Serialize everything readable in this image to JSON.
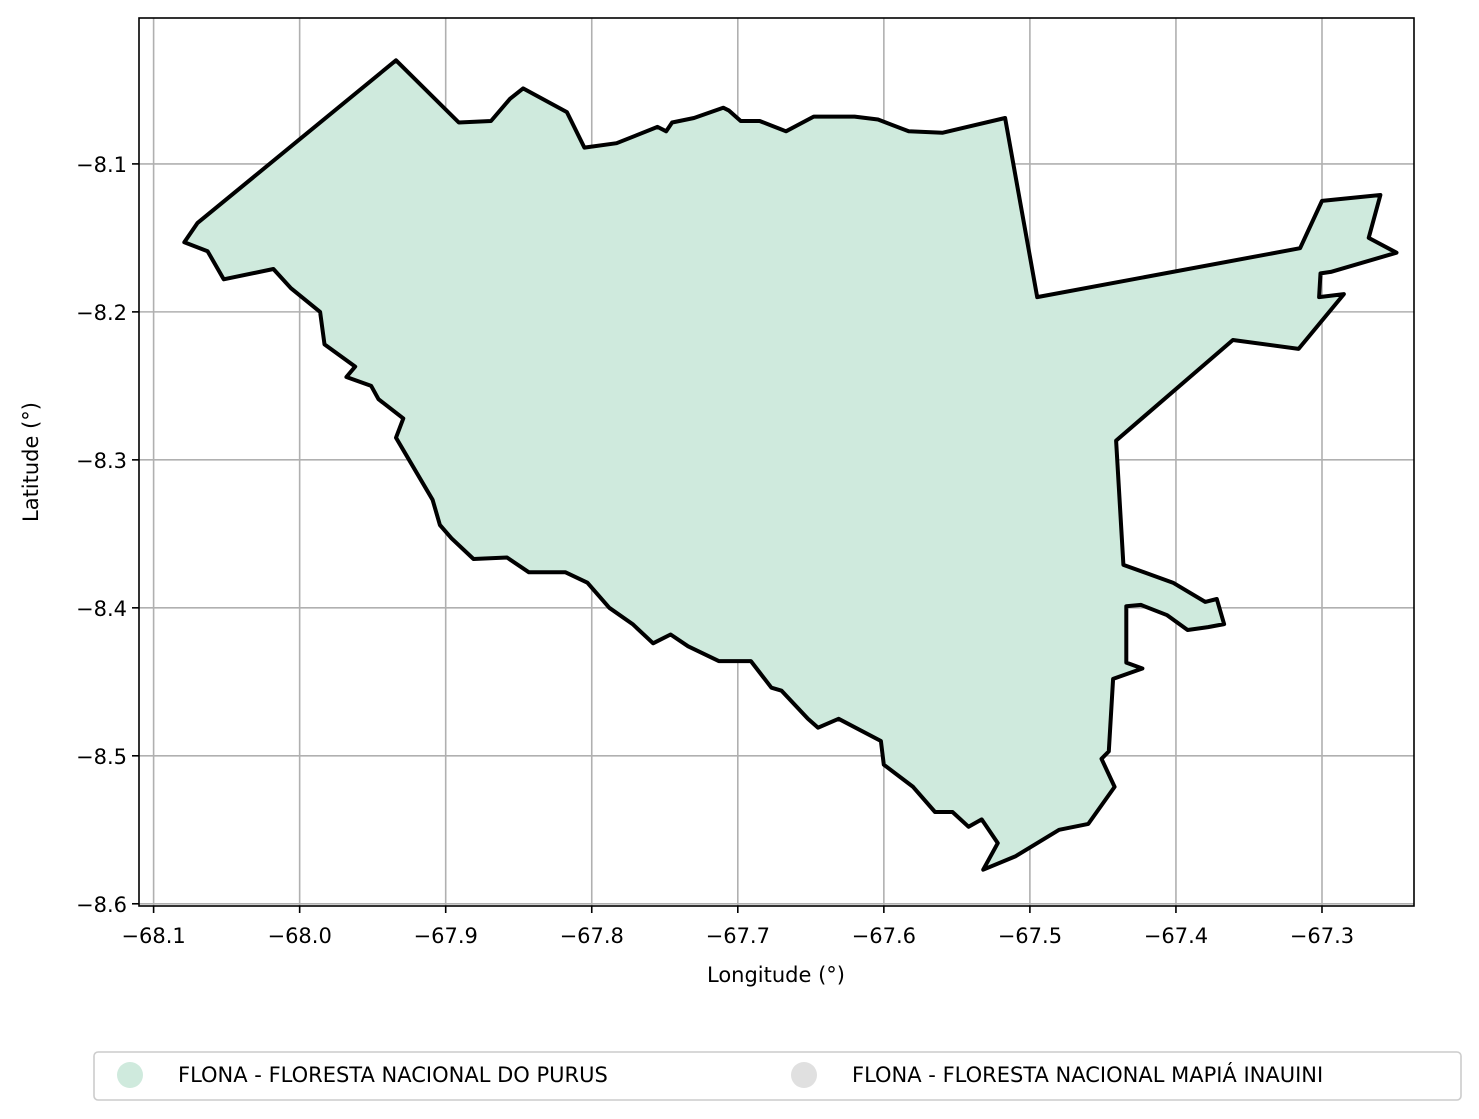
{
  "chart_data": {
    "type": "map",
    "xlabel": "Longitude (°)",
    "ylabel": "Latitude (°)",
    "xlim": [
      -68.11,
      -67.237
    ],
    "ylim": [
      -8.6015,
      -8.0014
    ],
    "x_ticks": [
      -68.1,
      -68.0,
      -67.9,
      -67.8,
      -67.7,
      -67.6,
      -67.5,
      -67.4,
      -67.3
    ],
    "x_tick_labels": [
      "−68.1",
      "−68.0",
      "−67.9",
      "−67.8",
      "−67.7",
      "−67.6",
      "−67.5",
      "−67.4",
      "−67.3"
    ],
    "y_ticks": [
      -8.1,
      -8.2,
      -8.3,
      -8.4,
      -8.5,
      -8.6
    ],
    "y_tick_labels": [
      "−8.1",
      "−8.2",
      "−8.3",
      "−8.4",
      "−8.5",
      "−8.6"
    ],
    "grid": true,
    "legend_position": "bottom-center",
    "layers": [
      {
        "name": "FLONA - FLORESTA NACIONAL DO PURUS",
        "fill": "#cfeadd",
        "edge": "#000000",
        "coords": [
          [
            -68.07,
            -8.14
          ],
          [
            -67.934,
            -8.03
          ],
          [
            -67.891,
            -8.072
          ],
          [
            -67.869,
            -8.071
          ],
          [
            -67.856,
            -8.056
          ],
          [
            -67.847,
            -8.049
          ],
          [
            -67.817,
            -8.065
          ],
          [
            -67.805,
            -8.089
          ],
          [
            -67.783,
            -8.086
          ],
          [
            -67.755,
            -8.075
          ],
          [
            -67.749,
            -8.078
          ],
          [
            -67.745,
            -8.072
          ],
          [
            -67.73,
            -8.069
          ],
          [
            -67.71,
            -8.062
          ],
          [
            -67.706,
            -8.064
          ],
          [
            -67.698,
            -8.071
          ],
          [
            -67.685,
            -8.071
          ],
          [
            -67.667,
            -8.078
          ],
          [
            -67.648,
            -8.068
          ],
          [
            -67.62,
            -8.068
          ],
          [
            -67.604,
            -8.07
          ],
          [
            -67.583,
            -8.078
          ],
          [
            -67.56,
            -8.079
          ],
          [
            -67.517,
            -8.069
          ],
          [
            -67.495,
            -8.19
          ],
          [
            -67.315,
            -8.157
          ],
          [
            -67.3,
            -8.125
          ],
          [
            -67.26,
            -8.121
          ],
          [
            -67.268,
            -8.15
          ],
          [
            -67.249,
            -8.16
          ],
          [
            -67.294,
            -8.173
          ],
          [
            -67.301,
            -8.174
          ],
          [
            -67.302,
            -8.19
          ],
          [
            -67.285,
            -8.188
          ],
          [
            -67.316,
            -8.225
          ],
          [
            -67.361,
            -8.219
          ],
          [
            -67.441,
            -8.287
          ],
          [
            -67.436,
            -8.371
          ],
          [
            -67.402,
            -8.383
          ],
          [
            -67.38,
            -8.396
          ],
          [
            -67.372,
            -8.394
          ],
          [
            -67.367,
            -8.411
          ],
          [
            -67.378,
            -8.413
          ],
          [
            -67.392,
            -8.415
          ],
          [
            -67.406,
            -8.405
          ],
          [
            -67.424,
            -8.398
          ],
          [
            -67.434,
            -8.399
          ],
          [
            -67.434,
            -8.437
          ],
          [
            -67.423,
            -8.441
          ],
          [
            -67.443,
            -8.448
          ],
          [
            -67.446,
            -8.497
          ],
          [
            -67.451,
            -8.502
          ],
          [
            -67.442,
            -8.521
          ],
          [
            -67.46,
            -8.546
          ],
          [
            -67.48,
            -8.55
          ],
          [
            -67.51,
            -8.568
          ],
          [
            -67.532,
            -8.577
          ],
          [
            -67.522,
            -8.559
          ],
          [
            -67.533,
            -8.543
          ],
          [
            -67.542,
            -8.548
          ],
          [
            -67.553,
            -8.538
          ],
          [
            -67.565,
            -8.538
          ],
          [
            -67.58,
            -8.521
          ],
          [
            -67.6,
            -8.506
          ],
          [
            -67.602,
            -8.49
          ],
          [
            -67.631,
            -8.475
          ],
          [
            -67.645,
            -8.481
          ],
          [
            -67.652,
            -8.475
          ],
          [
            -67.67,
            -8.456
          ],
          [
            -67.677,
            -8.454
          ],
          [
            -67.691,
            -8.436
          ],
          [
            -67.713,
            -8.436
          ],
          [
            -67.734,
            -8.426
          ],
          [
            -67.746,
            -8.418
          ],
          [
            -67.758,
            -8.424
          ],
          [
            -67.772,
            -8.411
          ],
          [
            -67.788,
            -8.4
          ],
          [
            -67.803,
            -8.383
          ],
          [
            -67.818,
            -8.376
          ],
          [
            -67.843,
            -8.376
          ],
          [
            -67.858,
            -8.366
          ],
          [
            -67.881,
            -8.367
          ],
          [
            -67.896,
            -8.353
          ],
          [
            -67.904,
            -8.344
          ],
          [
            -67.909,
            -8.327
          ],
          [
            -67.934,
            -8.285
          ],
          [
            -67.929,
            -8.272
          ],
          [
            -67.946,
            -8.259
          ],
          [
            -67.951,
            -8.25
          ],
          [
            -67.968,
            -8.244
          ],
          [
            -67.962,
            -8.237
          ],
          [
            -67.983,
            -8.222
          ],
          [
            -67.986,
            -8.2
          ],
          [
            -68.006,
            -8.184
          ],
          [
            -68.018,
            -8.171
          ],
          [
            -68.052,
            -8.178
          ],
          [
            -68.063,
            -8.159
          ],
          [
            -68.079,
            -8.153
          ]
        ]
      },
      {
        "name": "FLONA - FLORESTA NACIONAL MAPIÁ INAUINI",
        "fill": "#e0e0e0"
      }
    ]
  }
}
